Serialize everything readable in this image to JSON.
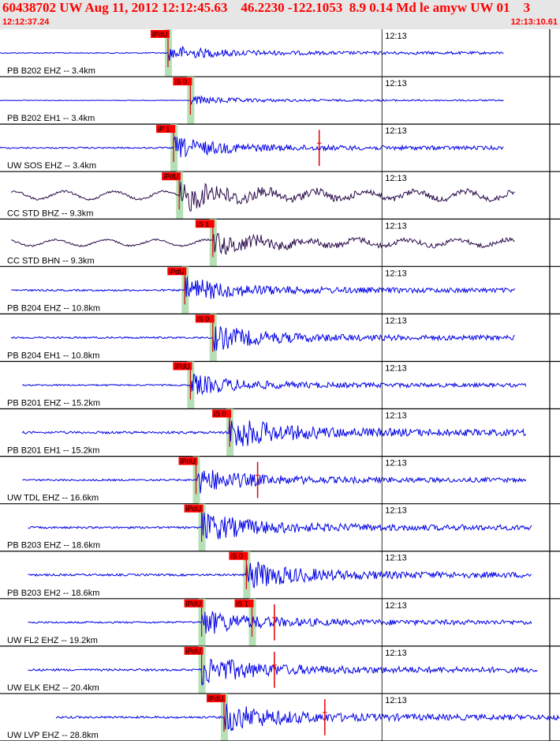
{
  "header": {
    "title": "60438702 UW Aug 11, 2012 12:12:45.63    46.2230 -122.1053  8.9 0.14 Md le amyw UW 01    3",
    "start_time": "12:12:37.24",
    "end_time": "12:13:10.61"
  },
  "colors": {
    "header_text": "#ff0000",
    "header_bg": "#e6e6e6",
    "trace_blue": "#0000e6",
    "trace_dark": "#2a0a4a",
    "pick_box": "#ff0000",
    "green_band": "#b5e0b5",
    "grid": "#000000"
  },
  "chart_data": {
    "type": "line",
    "title": "",
    "xlabel": "",
    "ylabel": "",
    "x_range": [
      "12:12:37.24",
      "12:13:10.61"
    ],
    "time_tick_label": "12:13",
    "time_tick": "12:13:00",
    "series": [
      {
        "name": "PB B202 EHZ -- 3.4km",
        "color": "blue",
        "start": 0.0,
        "end": 0.9,
        "amp": 7,
        "onset": 0.3,
        "pick": {
          "label": "iPdU",
          "time": 0.3
        }
      },
      {
        "name": "PB B202 EH1 -- 3.4km",
        "color": "blue",
        "start": 0.0,
        "end": 0.9,
        "amp": 4,
        "onset": 0.34,
        "pick": {
          "label": "iS 0",
          "time": 0.34
        }
      },
      {
        "name": "UW SOS EHZ -- 3.4km",
        "color": "blue",
        "start": 0.0,
        "end": 0.9,
        "amp": 10,
        "onset": 0.31,
        "pick": {
          "label": "iP 1",
          "time": 0.31
        },
        "spike": 0.57
      },
      {
        "name": "CC STD BHZ -- 9.3km",
        "color": "dark",
        "start": 0.02,
        "end": 0.92,
        "amp": 18,
        "onset": 0.32,
        "pick": {
          "label": "iPdU",
          "time": 0.32
        }
      },
      {
        "name": "CC STD BHN -- 9.3km",
        "color": "dark",
        "start": 0.02,
        "end": 0.92,
        "amp": 14,
        "onset": 0.38,
        "pick": {
          "label": "iS 1",
          "time": 0.38
        }
      },
      {
        "name": "PB B204 EHZ -- 10.8km",
        "color": "blue",
        "start": 0.02,
        "end": 0.92,
        "amp": 12,
        "onset": 0.33,
        "pick": {
          "label": "iPdU",
          "time": 0.33
        }
      },
      {
        "name": "PB B204 EH1 -- 10.8km",
        "color": "blue",
        "start": 0.02,
        "end": 0.92,
        "amp": 12,
        "onset": 0.38,
        "pick": {
          "label": "iS 0",
          "time": 0.38
        }
      },
      {
        "name": "PB B201 EHZ -- 15.2km",
        "color": "blue",
        "start": 0.04,
        "end": 0.94,
        "amp": 10,
        "onset": 0.34,
        "pick": {
          "label": "iPdU",
          "time": 0.34
        }
      },
      {
        "name": "PB B201 EH1 -- 15.2km",
        "color": "blue",
        "start": 0.04,
        "end": 0.94,
        "amp": 16,
        "onset": 0.41,
        "pick": {
          "label": "iS 0",
          "time": 0.41
        }
      },
      {
        "name": "UW TDL EHZ -- 16.6km",
        "color": "blue",
        "start": 0.04,
        "end": 0.94,
        "amp": 12,
        "onset": 0.35,
        "pick": {
          "label": "iPdU",
          "time": 0.35
        },
        "spike": 0.46
      },
      {
        "name": "PB B203 EHZ -- 18.6km",
        "color": "blue",
        "start": 0.05,
        "end": 0.95,
        "amp": 14,
        "onset": 0.36,
        "pick": {
          "label": "iPdU",
          "time": 0.36
        }
      },
      {
        "name": "PB B203 EH2 -- 18.6km",
        "color": "blue",
        "start": 0.05,
        "end": 0.95,
        "amp": 14,
        "onset": 0.44,
        "pick": {
          "label": "iS 0",
          "time": 0.44
        }
      },
      {
        "name": "UW FL2 EHZ -- 19.2km",
        "color": "blue",
        "start": 0.05,
        "end": 0.95,
        "amp": 12,
        "onset": 0.36,
        "pick": {
          "label": "iPdU",
          "time": 0.36
        },
        "pick2": {
          "label": "iS 1",
          "time": 0.45
        },
        "spike": 0.49
      },
      {
        "name": "UW ELK EHZ -- 20.4km",
        "color": "blue",
        "start": 0.05,
        "end": 0.96,
        "amp": 14,
        "onset": 0.36,
        "pick": {
          "label": "iPdU",
          "time": 0.36
        },
        "spike": 0.49
      },
      {
        "name": "UW LVP EHZ -- 28.8km",
        "color": "blue",
        "start": 0.1,
        "end": 1.0,
        "amp": 14,
        "onset": 0.4,
        "pick": {
          "label": "iPdU",
          "time": 0.4
        },
        "spike": 0.58
      }
    ]
  }
}
